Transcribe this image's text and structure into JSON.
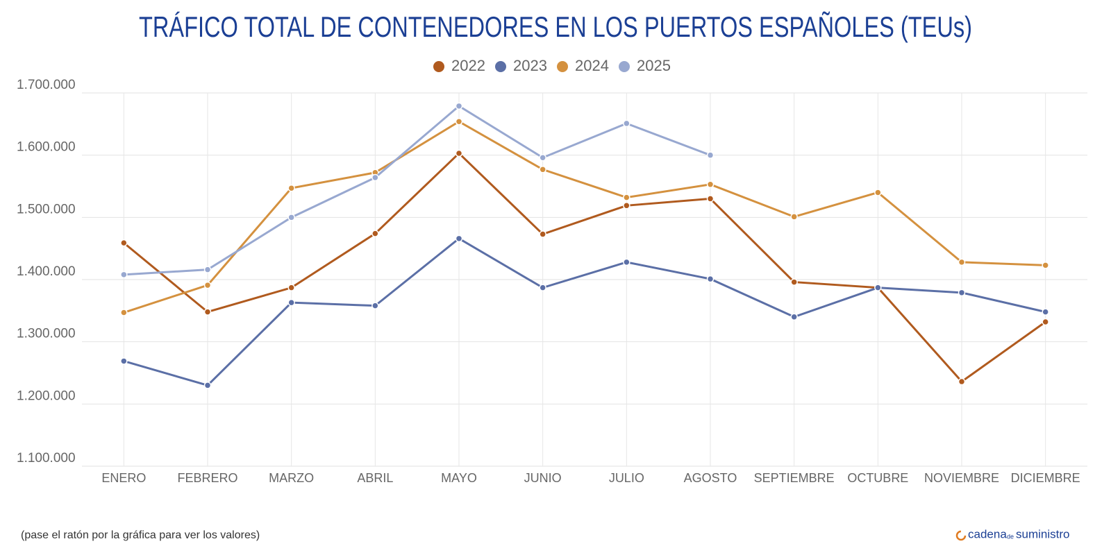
{
  "chart_data": {
    "type": "line",
    "title": "TRÁFICO TOTAL DE CONTENEDORES EN LOS PUERTOS ESPAÑOLES (TEUs)",
    "categories": [
      "ENERO",
      "FEBRERO",
      "MARZO",
      "ABRIL",
      "MAYO",
      "JUNIO",
      "JULIO",
      "AGOSTO",
      "SEPTIEMBRE",
      "OCTUBRE",
      "NOVIEMBRE",
      "DICIEMBRE"
    ],
    "series": [
      {
        "name": "2022",
        "color": "#b05a1e",
        "values": [
          1459000,
          1348000,
          1387000,
          1474000,
          1603000,
          1473000,
          1519000,
          1530000,
          1396000,
          1387000,
          1236000,
          1332000
        ]
      },
      {
        "name": "2023",
        "color": "#5b6fa6",
        "values": [
          1269000,
          1230000,
          1363000,
          1358000,
          1466000,
          1387000,
          1428000,
          1401000,
          1340000,
          1387000,
          1379000,
          1348000
        ]
      },
      {
        "name": "2024",
        "color": "#d4913f",
        "values": [
          1347000,
          1391000,
          1547000,
          1572000,
          1654000,
          1577000,
          1532000,
          1553000,
          1501000,
          1540000,
          1428000,
          1423000
        ]
      },
      {
        "name": "2025",
        "color": "#98a8d0",
        "values": [
          1408000,
          1416000,
          1500000,
          1564000,
          1679000,
          1596000,
          1651000,
          1600000,
          null,
          null,
          null,
          null
        ]
      }
    ],
    "ylim": [
      1100000,
      1700000
    ],
    "yticks": [
      {
        "value": 1100000,
        "label": "1.100.000"
      },
      {
        "value": 1200000,
        "label": "1.200.000"
      },
      {
        "value": 1300000,
        "label": "1.300.000"
      },
      {
        "value": 1400000,
        "label": "1.400.000"
      },
      {
        "value": 1500000,
        "label": "1.500.000"
      },
      {
        "value": 1600000,
        "label": "1.600.000"
      },
      {
        "value": 1700000,
        "label": "1.700.000"
      }
    ],
    "grid": true,
    "legend": "top",
    "note": "(pase el ratón por la gráfica para ver los valores)",
    "logo": {
      "part1": "cadena",
      "part2": "de",
      "part3": "suministro"
    }
  }
}
